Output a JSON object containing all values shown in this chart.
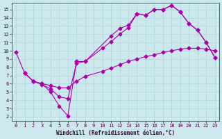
{
  "xlabel": "Windchill (Refroidissement éolien,°C)",
  "bg_color": "#cce8ec",
  "line_color": "#aa00aa",
  "grid_color": "#aad8dc",
  "xlim": [
    -0.5,
    23.5
  ],
  "ylim": [
    1.5,
    15.8
  ],
  "xticks": [
    0,
    1,
    2,
    3,
    4,
    5,
    6,
    7,
    8,
    9,
    10,
    11,
    12,
    13,
    14,
    15,
    16,
    17,
    18,
    19,
    20,
    21,
    22,
    23
  ],
  "yticks": [
    2,
    3,
    4,
    5,
    6,
    7,
    8,
    9,
    10,
    11,
    12,
    13,
    14,
    15
  ],
  "line1_x": [
    0,
    1,
    2,
    3,
    4,
    5,
    6,
    7,
    8,
    11,
    12,
    13,
    14,
    15,
    16,
    17,
    18,
    19,
    20,
    21,
    22,
    23
  ],
  "line1_y": [
    9.8,
    7.3,
    6.3,
    6.0,
    5.0,
    3.3,
    2.1,
    8.7,
    8.7,
    11.8,
    12.7,
    13.1,
    14.5,
    14.3,
    15.0,
    15.0,
    15.5,
    14.7,
    13.3,
    12.5,
    11.0,
    9.2
  ],
  "line2_x": [
    1,
    2,
    3,
    4,
    5,
    6,
    7,
    8,
    10,
    11,
    12,
    13,
    14,
    15,
    16,
    17,
    18,
    19,
    20,
    21,
    22,
    23
  ],
  "line2_y": [
    7.3,
    6.3,
    6.0,
    5.8,
    5.5,
    5.5,
    6.3,
    6.9,
    7.5,
    7.9,
    8.3,
    8.7,
    9.0,
    9.3,
    9.5,
    9.8,
    10.0,
    10.2,
    10.3,
    10.3,
    10.2,
    10.0
  ],
  "line3_x": [
    1,
    2,
    3,
    4,
    5,
    6,
    7,
    8,
    10,
    11,
    12,
    13,
    14,
    15,
    16,
    17,
    18,
    19,
    20,
    21,
    22,
    23
  ],
  "line3_y": [
    7.3,
    6.3,
    5.9,
    5.4,
    4.4,
    4.2,
    8.5,
    8.7,
    10.3,
    11.1,
    12.0,
    12.8,
    14.5,
    14.3,
    15.0,
    15.0,
    15.5,
    14.7,
    13.3,
    12.5,
    11.0,
    9.2
  ]
}
